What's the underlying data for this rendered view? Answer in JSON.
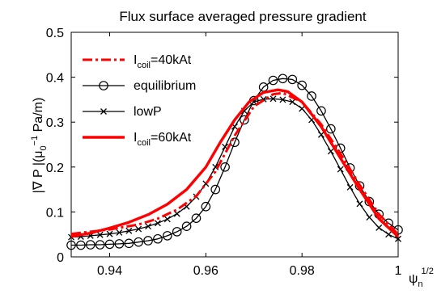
{
  "chart_data": {
    "type": "line",
    "title": "Flux surface averaged pressure gradient",
    "xlabel": {
      "main": "ψ",
      "sub": "n",
      "sup": "1/2"
    },
    "ylabel": {
      "text": "|∇ P |(μ",
      "sub": "0",
      "sup": "−1",
      "tail": " Pa/m)"
    },
    "xlim": [
      0.932,
      1.0
    ],
    "ylim": [
      0,
      0.5
    ],
    "xticks": [
      0.94,
      0.96,
      0.98,
      1
    ],
    "xtick_labels": [
      "0.94",
      "0.96",
      "0.98",
      "1"
    ],
    "yticks": [
      0,
      0.1,
      0.2,
      0.3,
      0.4,
      0.5
    ],
    "ytick_labels": [
      "0",
      "0.1",
      "0.2",
      "0.3",
      "0.4",
      "0.5"
    ],
    "grid": false,
    "legend_position": "top-left",
    "series": [
      {
        "name": "I",
        "name_sub": "coil",
        "name_tail": "=40kAt",
        "color": "#ff0000",
        "style": "dash-dot",
        "marker": "none",
        "x": [
          0.932,
          0.94,
          0.946,
          0.95,
          0.954,
          0.958,
          0.962,
          0.966,
          0.97,
          0.974,
          0.976,
          0.98,
          0.984,
          0.988,
          0.992,
          0.996,
          1.0
        ],
        "y": [
          0.051,
          0.061,
          0.072,
          0.085,
          0.105,
          0.135,
          0.19,
          0.27,
          0.335,
          0.362,
          0.365,
          0.345,
          0.295,
          0.23,
          0.16,
          0.095,
          0.05
        ]
      },
      {
        "name": "equilibrium",
        "color": "#000000",
        "style": "solid",
        "marker": "circle",
        "x": [
          0.932,
          0.934,
          0.936,
          0.938,
          0.94,
          0.942,
          0.944,
          0.946,
          0.948,
          0.95,
          0.952,
          0.954,
          0.956,
          0.958,
          0.96,
          0.962,
          0.964,
          0.966,
          0.968,
          0.97,
          0.972,
          0.974,
          0.976,
          0.978,
          0.98,
          0.982,
          0.984,
          0.986,
          0.988,
          0.99,
          0.992,
          0.994,
          0.996,
          0.998,
          1.0
        ],
        "y": [
          0.026,
          0.026,
          0.027,
          0.027,
          0.028,
          0.029,
          0.03,
          0.033,
          0.036,
          0.04,
          0.047,
          0.056,
          0.068,
          0.086,
          0.112,
          0.15,
          0.2,
          0.255,
          0.305,
          0.348,
          0.378,
          0.393,
          0.397,
          0.395,
          0.382,
          0.358,
          0.325,
          0.285,
          0.242,
          0.198,
          0.158,
          0.123,
          0.095,
          0.075,
          0.06
        ]
      },
      {
        "name": "lowP",
        "color": "#000000",
        "style": "solid",
        "marker": "x",
        "x": [
          0.932,
          0.934,
          0.936,
          0.938,
          0.94,
          0.942,
          0.944,
          0.946,
          0.948,
          0.95,
          0.952,
          0.954,
          0.956,
          0.958,
          0.96,
          0.962,
          0.964,
          0.966,
          0.968,
          0.97,
          0.972,
          0.974,
          0.976,
          0.978,
          0.98,
          0.982,
          0.984,
          0.986,
          0.988,
          0.99,
          0.992,
          0.994,
          0.996,
          0.998,
          1.0
        ],
        "y": [
          0.044,
          0.045,
          0.047,
          0.049,
          0.051,
          0.054,
          0.058,
          0.062,
          0.068,
          0.075,
          0.084,
          0.096,
          0.112,
          0.134,
          0.163,
          0.2,
          0.245,
          0.29,
          0.325,
          0.345,
          0.351,
          0.352,
          0.35,
          0.345,
          0.33,
          0.305,
          0.272,
          0.235,
          0.195,
          0.155,
          0.118,
          0.088,
          0.065,
          0.05,
          0.04
        ]
      },
      {
        "name": "I",
        "name_sub": "coil",
        "name_tail": "=60kAt",
        "color": "#ff0000",
        "style": "solid",
        "marker": "none",
        "thick": true,
        "x": [
          0.932,
          0.936,
          0.94,
          0.944,
          0.948,
          0.952,
          0.956,
          0.96,
          0.963,
          0.966,
          0.969,
          0.972,
          0.975,
          0.977,
          0.98,
          0.984,
          0.988,
          0.992,
          0.996,
          1.0
        ],
        "y": [
          0.045,
          0.053,
          0.064,
          0.077,
          0.094,
          0.117,
          0.15,
          0.2,
          0.255,
          0.305,
          0.345,
          0.366,
          0.372,
          0.368,
          0.345,
          0.29,
          0.22,
          0.15,
          0.085,
          0.045
        ]
      }
    ]
  }
}
